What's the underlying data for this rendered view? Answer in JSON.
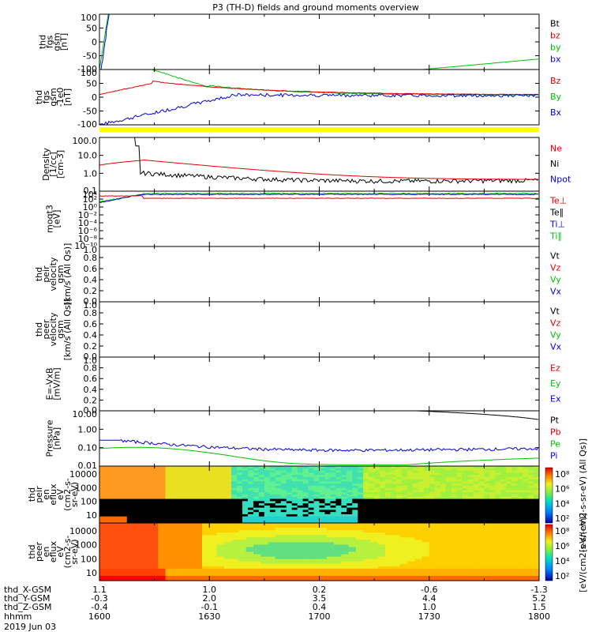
{
  "title": "P3 (TH-D) fields and ground moments overview",
  "date": "2019 Jun 03",
  "colors": {
    "black": "#000000",
    "red": "#e00000",
    "green": "#00c000",
    "blue": "#0000e0",
    "yellow": "#ffff00"
  },
  "time_axis": {
    "rows": [
      {
        "name": "thd_X-GSM",
        "values": [
          "1.1",
          "1.0",
          "0.2",
          "-0.6",
          "-1.3"
        ]
      },
      {
        "name": "thd_Y-GSM",
        "values": [
          "-0.3",
          "2.0",
          "3.5",
          "4.4",
          "5.2"
        ]
      },
      {
        "name": "thd_Z-GSM",
        "values": [
          "-0.4",
          "-0.1",
          "0.4",
          "1.0",
          "1.5"
        ]
      },
      {
        "name": "hhmm",
        "values": [
          "1600",
          "1630",
          "1700",
          "1730",
          "1800"
        ]
      }
    ],
    "tick_times": [
      1600,
      1630,
      1700,
      1730,
      1800
    ],
    "range": [
      1600,
      1800
    ]
  },
  "chart_data": [
    {
      "type": "line",
      "ylabel": [
        "thd",
        "fgs",
        "gsm",
        "[nT]"
      ],
      "yticks": [
        "100",
        "50",
        "0",
        "-50",
        "-100"
      ],
      "ylim": [
        -100,
        100
      ],
      "legend": [
        {
          "name": "Bt",
          "color": "#000000"
        },
        {
          "name": "bz",
          "color": "#e00000"
        },
        {
          "name": "by",
          "color": "#00c000"
        },
        {
          "name": "bx",
          "color": "#0000e0"
        }
      ]
    },
    {
      "type": "line",
      "ylabel": [
        "thd",
        "fgs",
        "gsm",
        "-1e0",
        "[nT]"
      ],
      "yticks": [
        "100",
        "50",
        "0",
        "-50",
        "-100"
      ],
      "ylim": [
        -100,
        100
      ],
      "legend": [
        {
          "name": "Bz",
          "color": "#e00000"
        },
        {
          "name": "By",
          "color": "#00c000"
        },
        {
          "name": "Bx",
          "color": "#0000e0"
        }
      ]
    },
    {
      "type": "line",
      "scale": "log",
      "ylabel": [
        "Density",
        "[1/cc]",
        "[cm-3]"
      ],
      "yticks": [
        "100.0",
        "10.0",
        "1.0",
        "0.1"
      ],
      "legend": [
        {
          "name": "Ne",
          "color": "#e00000"
        },
        {
          "name": "Ni",
          "color": "#000000"
        },
        {
          "name": "Npot",
          "color": "#0000e0"
        }
      ]
    },
    {
      "type": "line",
      "scale": "log",
      "ylabel": [
        "moqt3",
        "[eV]"
      ],
      "yticks": [
        "10⁴",
        "10²",
        "10⁰",
        "10⁻²",
        "10⁻⁴",
        "10⁻⁶",
        "10⁻⁸",
        "10⁻¹⁰"
      ],
      "legend": [
        {
          "name": "Te⊥",
          "color": "#e00000"
        },
        {
          "name": "Te∥",
          "color": "#000000"
        },
        {
          "name": "Ti⊥",
          "color": "#0000e0"
        },
        {
          "name": "Ti∥",
          "color": "#00c000"
        }
      ]
    },
    {
      "type": "line",
      "ylabel": [
        "thd",
        "peir",
        "velocity",
        "gsm",
        "[km/s (All Qs)]"
      ],
      "yticks": [
        "1.0",
        "0.8",
        "0.6",
        "0.4",
        "0.2",
        "0.0"
      ],
      "ylim": [
        0,
        1
      ],
      "legend": [
        {
          "name": "Vt",
          "color": "#000000"
        },
        {
          "name": "Vz",
          "color": "#e00000"
        },
        {
          "name": "Vy",
          "color": "#00c000"
        },
        {
          "name": "Vx",
          "color": "#0000e0"
        }
      ]
    },
    {
      "type": "line",
      "ylabel": [
        "thd",
        "peer",
        "velocity",
        "gsm",
        "[km/s (All Qs)]"
      ],
      "yticks": [
        "1.0",
        "0.8",
        "0.6",
        "0.4",
        "0.2",
        "0.0"
      ],
      "ylim": [
        0,
        1
      ],
      "legend": [
        {
          "name": "Vt",
          "color": "#000000"
        },
        {
          "name": "Vz",
          "color": "#e00000"
        },
        {
          "name": "Vy",
          "color": "#00c000"
        },
        {
          "name": "Vx",
          "color": "#0000e0"
        }
      ]
    },
    {
      "type": "line",
      "ylabel": [
        "E=-VxB",
        "[mV/m]"
      ],
      "yticks": [
        "1.0",
        "0.8",
        "0.6",
        "0.4",
        "0.2",
        "0.0"
      ],
      "ylim": [
        0,
        1
      ],
      "legend": [
        {
          "name": "Ez",
          "color": "#e00000"
        },
        {
          "name": "Ey",
          "color": "#00c000"
        },
        {
          "name": "Ex",
          "color": "#0000e0"
        }
      ]
    },
    {
      "type": "line",
      "scale": "log",
      "ylabel": [
        "Pressure",
        "[nPa]"
      ],
      "yticks": [
        "10.00",
        "1.00",
        "0.10",
        "0.01"
      ],
      "legend": [
        {
          "name": "Pt",
          "color": "#000000"
        },
        {
          "name": "Pb",
          "color": "#e00000"
        },
        {
          "name": "Pe",
          "color": "#00c000"
        },
        {
          "name": "Pi",
          "color": "#0000e0"
        }
      ]
    },
    {
      "type": "heatmap",
      "ylabel": [
        "thd",
        "peir",
        "en",
        "eflux",
        "eV",
        "(cm2-s-",
        "sr-eV)"
      ],
      "yticks": [
        "10000",
        "1000",
        "100",
        "10"
      ]
    },
    {
      "type": "heatmap",
      "ylabel": [
        "thd",
        "peer",
        "en",
        "eflux",
        "eV",
        "(cm2-s-",
        "sr-eV)"
      ],
      "yticks": [
        "10000",
        "1000",
        "100",
        "10"
      ]
    }
  ],
  "colorbars": [
    {
      "ticks": [
        "10⁸",
        "10⁶",
        "10⁴",
        "10²"
      ],
      "label": "[eV/(cm2-s-sr-eV) (All Qs)]"
    },
    {
      "ticks": [
        "10⁸",
        "10⁶",
        "10⁴",
        "10²"
      ],
      "label": "[eV/(cm2-s-sr-eV)]"
    }
  ]
}
